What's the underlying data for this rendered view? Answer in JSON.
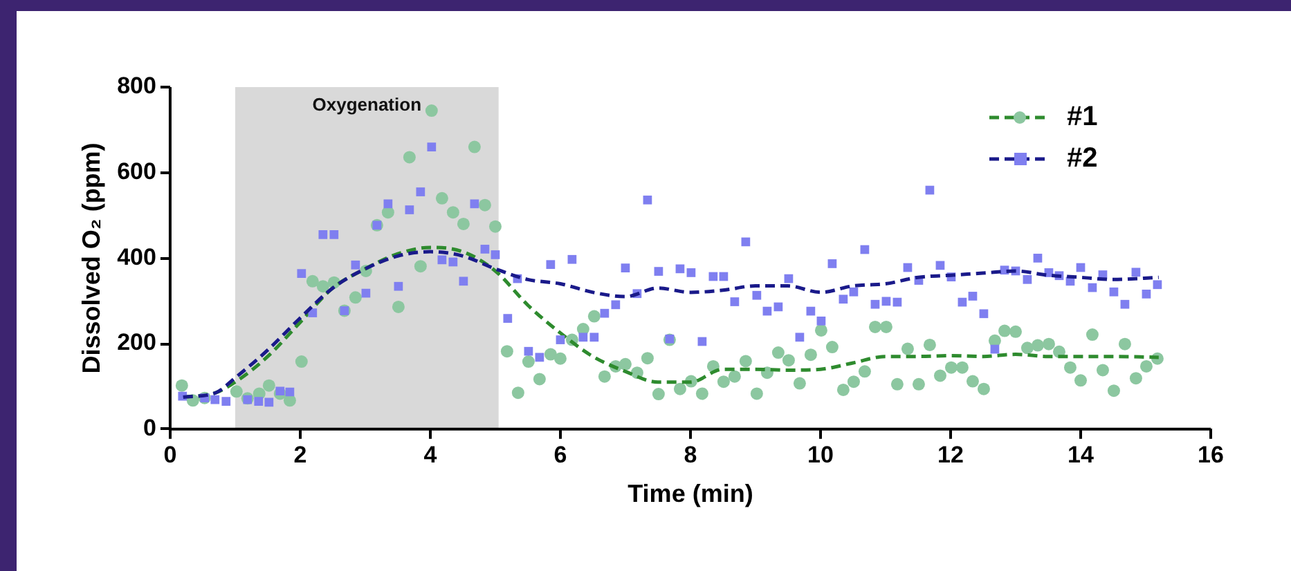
{
  "chart_data": {
    "type": "scatter",
    "xlabel": "Time (min)",
    "ylabel": "Dissolved O₂ (ppm)",
    "xlim": [
      0,
      16
    ],
    "xticks": [
      0,
      2,
      4,
      6,
      8,
      10,
      12,
      14,
      16
    ],
    "ylim": [
      0,
      800
    ],
    "yticks": [
      0,
      200,
      400,
      600,
      800
    ],
    "grid": false,
    "legend": "top right",
    "bands": [
      {
        "axis": "x",
        "from": 1,
        "to": 5.05,
        "label": "Oxygenation",
        "color": "#d9d9d9"
      }
    ],
    "series": [
      {
        "name": "#1",
        "type": "scatter",
        "marker": "circle",
        "color": "#8cc7a0",
        "x": [
          0.18,
          0.35,
          0.53,
          1.02,
          1.19,
          1.37,
          1.52,
          1.69,
          1.84,
          2.02,
          2.19,
          2.35,
          2.52,
          2.68,
          2.85,
          3.01,
          3.18,
          3.35,
          3.51,
          3.68,
          3.85,
          4.02,
          4.18,
          4.35,
          4.51,
          4.68,
          4.84,
          5.0,
          5.18,
          5.35,
          5.51,
          5.68,
          5.85,
          6.0,
          6.18,
          6.35,
          6.52,
          6.68,
          6.85,
          7.0,
          7.18,
          7.34,
          7.51,
          7.68,
          7.84,
          8.01,
          8.18,
          8.35,
          8.51,
          8.68,
          8.85,
          9.02,
          9.18,
          9.35,
          9.51,
          9.68,
          9.85,
          10.01,
          10.18,
          10.35,
          10.51,
          10.68,
          10.84,
          11.01,
          11.18,
          11.34,
          11.51,
          11.68,
          11.84,
          12.01,
          12.18,
          12.34,
          12.51,
          12.68,
          12.83,
          13.0,
          13.18,
          13.34,
          13.51,
          13.67,
          13.84,
          14.0,
          14.18,
          14.34,
          14.51,
          14.68,
          14.85,
          15.01,
          15.18
        ],
        "values": [
          102,
          67,
          73,
          88,
          72,
          83,
          102,
          83,
          67,
          158,
          346,
          334,
          343,
          277,
          308,
          370,
          477,
          507,
          286,
          636,
          381,
          745,
          540,
          507,
          480,
          660,
          524,
          474,
          182,
          85,
          158,
          117,
          175,
          165,
          209,
          234,
          264,
          123,
          147,
          152,
          132,
          166,
          82,
          209,
          94,
          112,
          83,
          147,
          111,
          123,
          159,
          83,
          132,
          179,
          161,
          107,
          174,
          231,
          192,
          92,
          111,
          135,
          239,
          239,
          105,
          188,
          105,
          197,
          125,
          144,
          144,
          112,
          94,
          207,
          230,
          228,
          190,
          196,
          199,
          181,
          144,
          114,
          221,
          138,
          90,
          199,
          119,
          147,
          165
        ]
      },
      {
        "type": "line",
        "marker": "none",
        "line_style": "dashed",
        "color": "#2e8b2e",
        "x": [
          0.2,
          0.7,
          1.0,
          1.5,
          2.0,
          2.5,
          3.0,
          3.5,
          4.0,
          4.5,
          5.0,
          5.5,
          6.0,
          6.5,
          7.0,
          7.5,
          8.0,
          8.5,
          9.0,
          9.5,
          10.0,
          10.5,
          11.0,
          11.5,
          12.0,
          12.5,
          13.0,
          13.5,
          14.0,
          14.5,
          15.2
        ],
        "values": [
          75,
          85,
          110,
          170,
          250,
          330,
          375,
          410,
          425,
          415,
          370,
          290,
          225,
          170,
          135,
          110,
          110,
          140,
          140,
          138,
          140,
          155,
          170,
          170,
          172,
          170,
          175,
          170,
          170,
          170,
          168
        ]
      },
      {
        "name": "#2",
        "type": "scatter",
        "marker": "square",
        "color": "#7f7ff0",
        "x": [
          0.19,
          0.53,
          0.69,
          0.86,
          1.19,
          1.36,
          1.52,
          1.69,
          1.84,
          2.02,
          2.19,
          2.35,
          2.52,
          2.68,
          2.85,
          3.01,
          3.18,
          3.35,
          3.51,
          3.68,
          3.85,
          4.02,
          4.18,
          4.35,
          4.51,
          4.68,
          4.84,
          5.0,
          5.19,
          5.34,
          5.51,
          5.68,
          5.85,
          6.0,
          6.18,
          6.35,
          6.52,
          6.68,
          6.85,
          7.0,
          7.18,
          7.34,
          7.51,
          7.68,
          7.84,
          8.01,
          8.18,
          8.35,
          8.51,
          8.68,
          8.85,
          9.02,
          9.18,
          9.35,
          9.51,
          9.68,
          9.85,
          10.01,
          10.18,
          10.35,
          10.51,
          10.68,
          10.84,
          11.01,
          11.18,
          11.34,
          11.51,
          11.68,
          11.84,
          12.01,
          12.18,
          12.34,
          12.51,
          12.68,
          12.83,
          13.0,
          13.18,
          13.34,
          13.51,
          13.67,
          13.84,
          14.0,
          14.18,
          14.34,
          14.51,
          14.68,
          14.85,
          15.01,
          15.18
        ],
        "values": [
          77,
          73,
          69,
          65,
          69,
          65,
          63,
          89,
          87,
          364,
          272,
          455,
          455,
          277,
          384,
          318,
          477,
          527,
          334,
          513,
          555,
          660,
          396,
          391,
          346,
          527,
          421,
          408,
          259,
          352,
          182,
          168,
          385,
          209,
          397,
          215,
          215,
          271,
          291,
          377,
          317,
          536,
          369,
          211,
          375,
          366,
          205,
          357,
          357,
          298,
          438,
          313,
          276,
          286,
          352,
          215,
          276,
          253,
          387,
          304,
          321,
          420,
          292,
          299,
          297,
          378,
          348,
          559,
          383,
          356,
          297,
          311,
          270,
          187,
          372,
          370,
          350,
          400,
          366,
          359,
          346,
          378,
          331,
          361,
          321,
          292,
          367,
          316,
          338
        ]
      },
      {
        "type": "line",
        "marker": "none",
        "line_style": "dashed",
        "color": "#1a1a8a",
        "x": [
          0.2,
          0.7,
          1.0,
          1.5,
          2.0,
          2.5,
          3.0,
          3.5,
          4.0,
          4.5,
          5.0,
          5.5,
          6.0,
          6.5,
          7.0,
          7.5,
          8.0,
          8.5,
          9.0,
          9.5,
          10.0,
          10.5,
          11.0,
          11.5,
          12.0,
          12.5,
          13.0,
          13.5,
          14.0,
          14.5,
          15.2
        ],
        "values": [
          75,
          85,
          120,
          185,
          260,
          330,
          375,
          405,
          415,
          405,
          375,
          350,
          340,
          320,
          310,
          330,
          320,
          325,
          335,
          335,
          320,
          335,
          340,
          355,
          360,
          365,
          370,
          360,
          355,
          350,
          355
        ]
      }
    ]
  }
}
